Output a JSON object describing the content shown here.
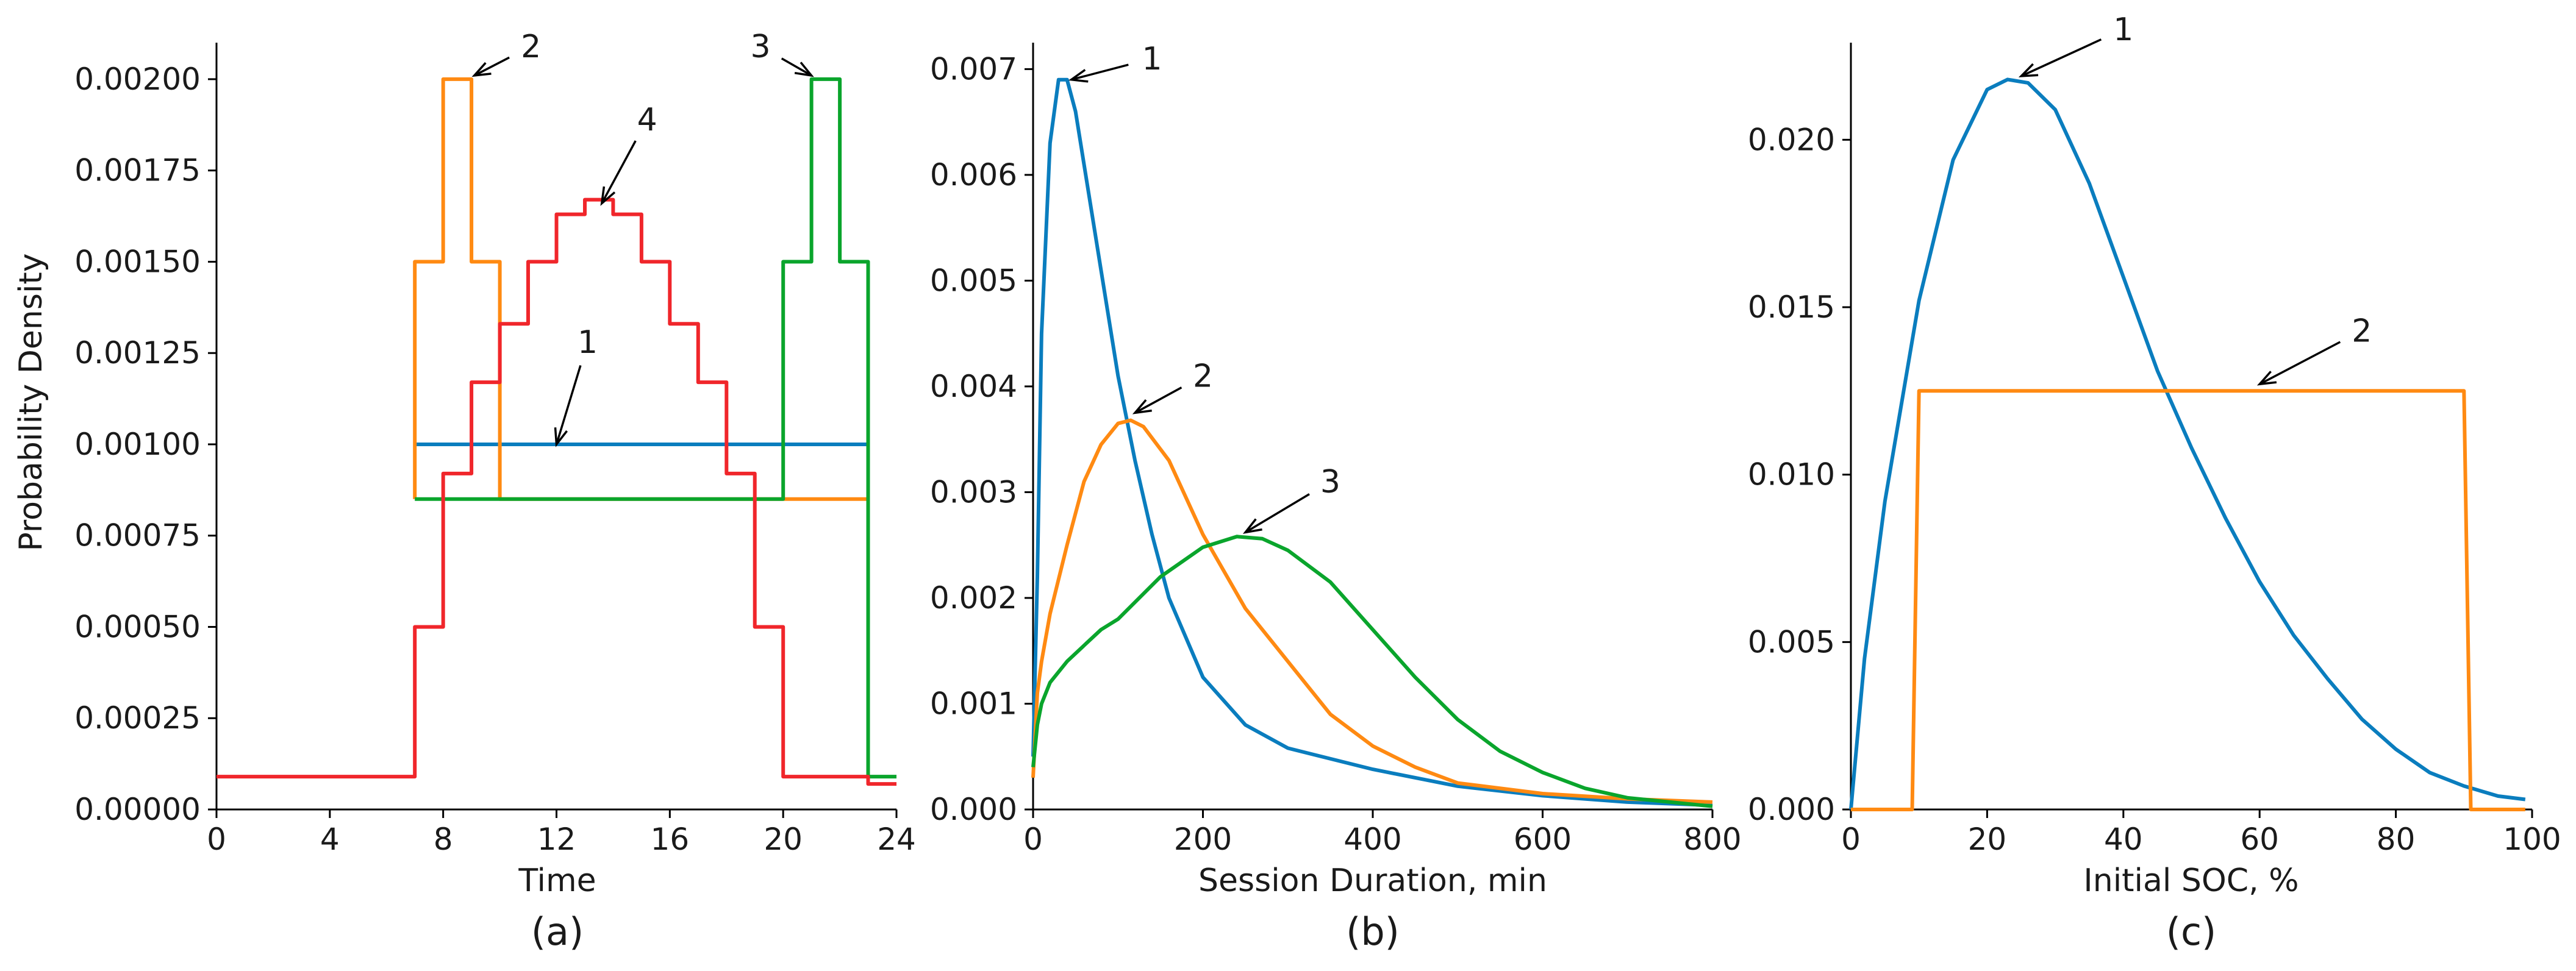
{
  "colors": {
    "blue": "#0a7dbe",
    "orange": "#ff8a12",
    "green": "#0aa52c",
    "red": "#f0262b"
  },
  "chart_data": [
    {
      "panel": "a",
      "type": "line",
      "step": true,
      "caption": "(a)",
      "xlabel": "Time",
      "ylabel": "Probability Density",
      "xlim": [
        0,
        24
      ],
      "ylim": [
        0,
        0.0021
      ],
      "xticks": [
        0,
        4,
        8,
        12,
        16,
        20,
        24
      ],
      "xtick_labels": [
        "0",
        "4",
        "8",
        "12",
        "16",
        "20",
        "24"
      ],
      "yticks": [
        0,
        0.00025,
        0.0005,
        0.00075,
        0.001,
        0.00125,
        0.0015,
        0.00175,
        0.002
      ],
      "ytick_labels": [
        "0.00000",
        "0.00025",
        "0.00050",
        "0.00075",
        "0.00100",
        "0.00125",
        "0.00150",
        "0.00175",
        "0.00200"
      ],
      "grid": false,
      "series": [
        {
          "name": "1",
          "color": "#0a7dbe",
          "x": [
            7,
            23
          ],
          "y": [
            0.001,
            0.001
          ]
        },
        {
          "name": "2",
          "color": "#ff8a12",
          "x": [
            7,
            7,
            8,
            8,
            9,
            9,
            10,
            10,
            23
          ],
          "y": [
            0.00085,
            0.0015,
            0.0015,
            0.002,
            0.002,
            0.0015,
            0.0015,
            0.00085,
            0.00085
          ]
        },
        {
          "name": "3",
          "color": "#0aa52c",
          "x": [
            7,
            7,
            20,
            20,
            21,
            21,
            22,
            22,
            23,
            23,
            24
          ],
          "y": [
            0.00085,
            0.00085,
            0.00085,
            0.0015,
            0.0015,
            0.002,
            0.002,
            0.0015,
            0.0015,
            9e-05,
            9e-05
          ]
        },
        {
          "name": "4",
          "color": "#f0262b",
          "x": [
            0,
            7,
            7,
            8,
            8,
            9,
            9,
            10,
            10,
            11,
            11,
            12,
            12,
            13,
            13,
            14,
            14,
            15,
            15,
            16,
            16,
            17,
            17,
            18,
            18,
            19,
            19,
            20,
            20,
            23,
            23,
            24
          ],
          "y": [
            9e-05,
            9e-05,
            0.0005,
            0.0005,
            0.00092,
            0.00092,
            0.00117,
            0.00117,
            0.00133,
            0.00133,
            0.0015,
            0.0015,
            0.00163,
            0.00163,
            0.00167,
            0.00167,
            0.00163,
            0.00163,
            0.0015,
            0.0015,
            0.00133,
            0.00133,
            0.00117,
            0.00117,
            0.00092,
            0.00092,
            0.0005,
            0.0005,
            9e-05,
            9e-05,
            7e-05,
            7e-05
          ]
        }
      ],
      "annotations": [
        {
          "text": "1",
          "x": 12,
          "y": 0.001,
          "text_x": 13.1,
          "text_y": 0.00128
        },
        {
          "text": "2",
          "x": 9.1,
          "y": 0.00201,
          "text_x": 11.1,
          "text_y": 0.00209
        },
        {
          "text": "3",
          "x": 21,
          "y": 0.00201,
          "text_x": 19.2,
          "text_y": 0.00209
        },
        {
          "text": "4",
          "x": 13.6,
          "y": 0.00166,
          "text_x": 15.2,
          "text_y": 0.00189
        }
      ]
    },
    {
      "panel": "b",
      "type": "line",
      "caption": "(b)",
      "xlabel": "Session Duration, min",
      "ylabel": "",
      "xlim": [
        0,
        800
      ],
      "ylim": [
        0,
        0.00725
      ],
      "xticks": [
        0,
        200,
        400,
        600,
        800
      ],
      "xtick_labels": [
        "0",
        "200",
        "400",
        "600",
        "800"
      ],
      "yticks": [
        0,
        0.001,
        0.002,
        0.003,
        0.004,
        0.005,
        0.006,
        0.007
      ],
      "ytick_labels": [
        "0.000",
        "0.001",
        "0.002",
        "0.003",
        "0.004",
        "0.005",
        "0.006",
        "0.007"
      ],
      "grid": false,
      "series": [
        {
          "name": "1",
          "color": "#0a7dbe",
          "x": [
            0,
            5,
            10,
            20,
            30,
            40,
            50,
            60,
            80,
            100,
            120,
            140,
            160,
            200,
            250,
            300,
            400,
            500,
            600,
            700,
            800
          ],
          "y": [
            0.0005,
            0.0022,
            0.0045,
            0.0063,
            0.0069,
            0.0069,
            0.0066,
            0.0061,
            0.0051,
            0.0041,
            0.0033,
            0.0026,
            0.002,
            0.00125,
            0.0008,
            0.00058,
            0.00038,
            0.00022,
            0.00013,
            7e-05,
            4e-05
          ]
        },
        {
          "name": "2",
          "color": "#ff8a12",
          "x": [
            0,
            5,
            10,
            20,
            40,
            60,
            80,
            100,
            115,
            130,
            160,
            200,
            250,
            300,
            350,
            400,
            450,
            500,
            600,
            700,
            800
          ],
          "y": [
            0.0003,
            0.0011,
            0.0014,
            0.00185,
            0.0025,
            0.0031,
            0.00345,
            0.00365,
            0.00368,
            0.00362,
            0.0033,
            0.0026,
            0.0019,
            0.0014,
            0.0009,
            0.0006,
            0.0004,
            0.00025,
            0.00015,
            0.0001,
            7e-05
          ]
        },
        {
          "name": "3",
          "color": "#0aa52c",
          "x": [
            0,
            5,
            10,
            20,
            40,
            60,
            80,
            100,
            150,
            200,
            240,
            270,
            300,
            350,
            400,
            450,
            500,
            550,
            600,
            650,
            700,
            800
          ],
          "y": [
            0.0004,
            0.0008,
            0.001,
            0.0012,
            0.0014,
            0.00155,
            0.0017,
            0.0018,
            0.0022,
            0.00248,
            0.00258,
            0.00256,
            0.00245,
            0.00215,
            0.0017,
            0.00125,
            0.00085,
            0.00055,
            0.00035,
            0.0002,
            0.00011,
            3e-05
          ]
        }
      ],
      "annotations": [
        {
          "text": "1",
          "x": 45,
          "y": 0.0069,
          "text_x": 140,
          "text_y": 0.0071
        },
        {
          "text": "2",
          "x": 120,
          "y": 0.00375,
          "text_x": 200,
          "text_y": 0.0041
        },
        {
          "text": "3",
          "x": 250,
          "y": 0.00262,
          "text_x": 350,
          "text_y": 0.0031
        }
      ]
    },
    {
      "panel": "c",
      "type": "line",
      "caption": "(c)",
      "xlabel": "Initial SOC, %",
      "ylabel": "",
      "xlim": [
        0,
        100
      ],
      "ylim": [
        0,
        0.0229
      ],
      "xticks": [
        0,
        20,
        40,
        60,
        80,
        100
      ],
      "xtick_labels": [
        "0",
        "20",
        "40",
        "60",
        "80",
        "100"
      ],
      "yticks": [
        0,
        0.005,
        0.01,
        0.015,
        0.02
      ],
      "ytick_labels": [
        "0.000",
        "0.005",
        "0.010",
        "0.015",
        "0.020"
      ],
      "grid": false,
      "series": [
        {
          "name": "1",
          "color": "#0a7dbe",
          "x": [
            0,
            2,
            5,
            10,
            15,
            20,
            23,
            26,
            30,
            35,
            40,
            45,
            50,
            55,
            60,
            65,
            70,
            75,
            80,
            85,
            90,
            95,
            99
          ],
          "y": [
            0,
            0.0045,
            0.0092,
            0.0152,
            0.0194,
            0.0215,
            0.0218,
            0.0217,
            0.0209,
            0.0187,
            0.0159,
            0.0131,
            0.0108,
            0.0087,
            0.0068,
            0.0052,
            0.0039,
            0.0027,
            0.0018,
            0.0011,
            0.0007,
            0.0004,
            0.0003
          ]
        },
        {
          "name": "2",
          "color": "#ff8a12",
          "x": [
            0,
            9,
            10,
            90,
            91,
            99
          ],
          "y": [
            0,
            0,
            0.0125,
            0.0125,
            0,
            0
          ]
        }
      ],
      "annotations": [
        {
          "text": "1",
          "x": 25,
          "y": 0.0219,
          "text_x": 40,
          "text_y": 0.0233
        },
        {
          "text": "2",
          "x": 60,
          "y": 0.0127,
          "text_x": 75,
          "text_y": 0.0143
        }
      ]
    }
  ]
}
